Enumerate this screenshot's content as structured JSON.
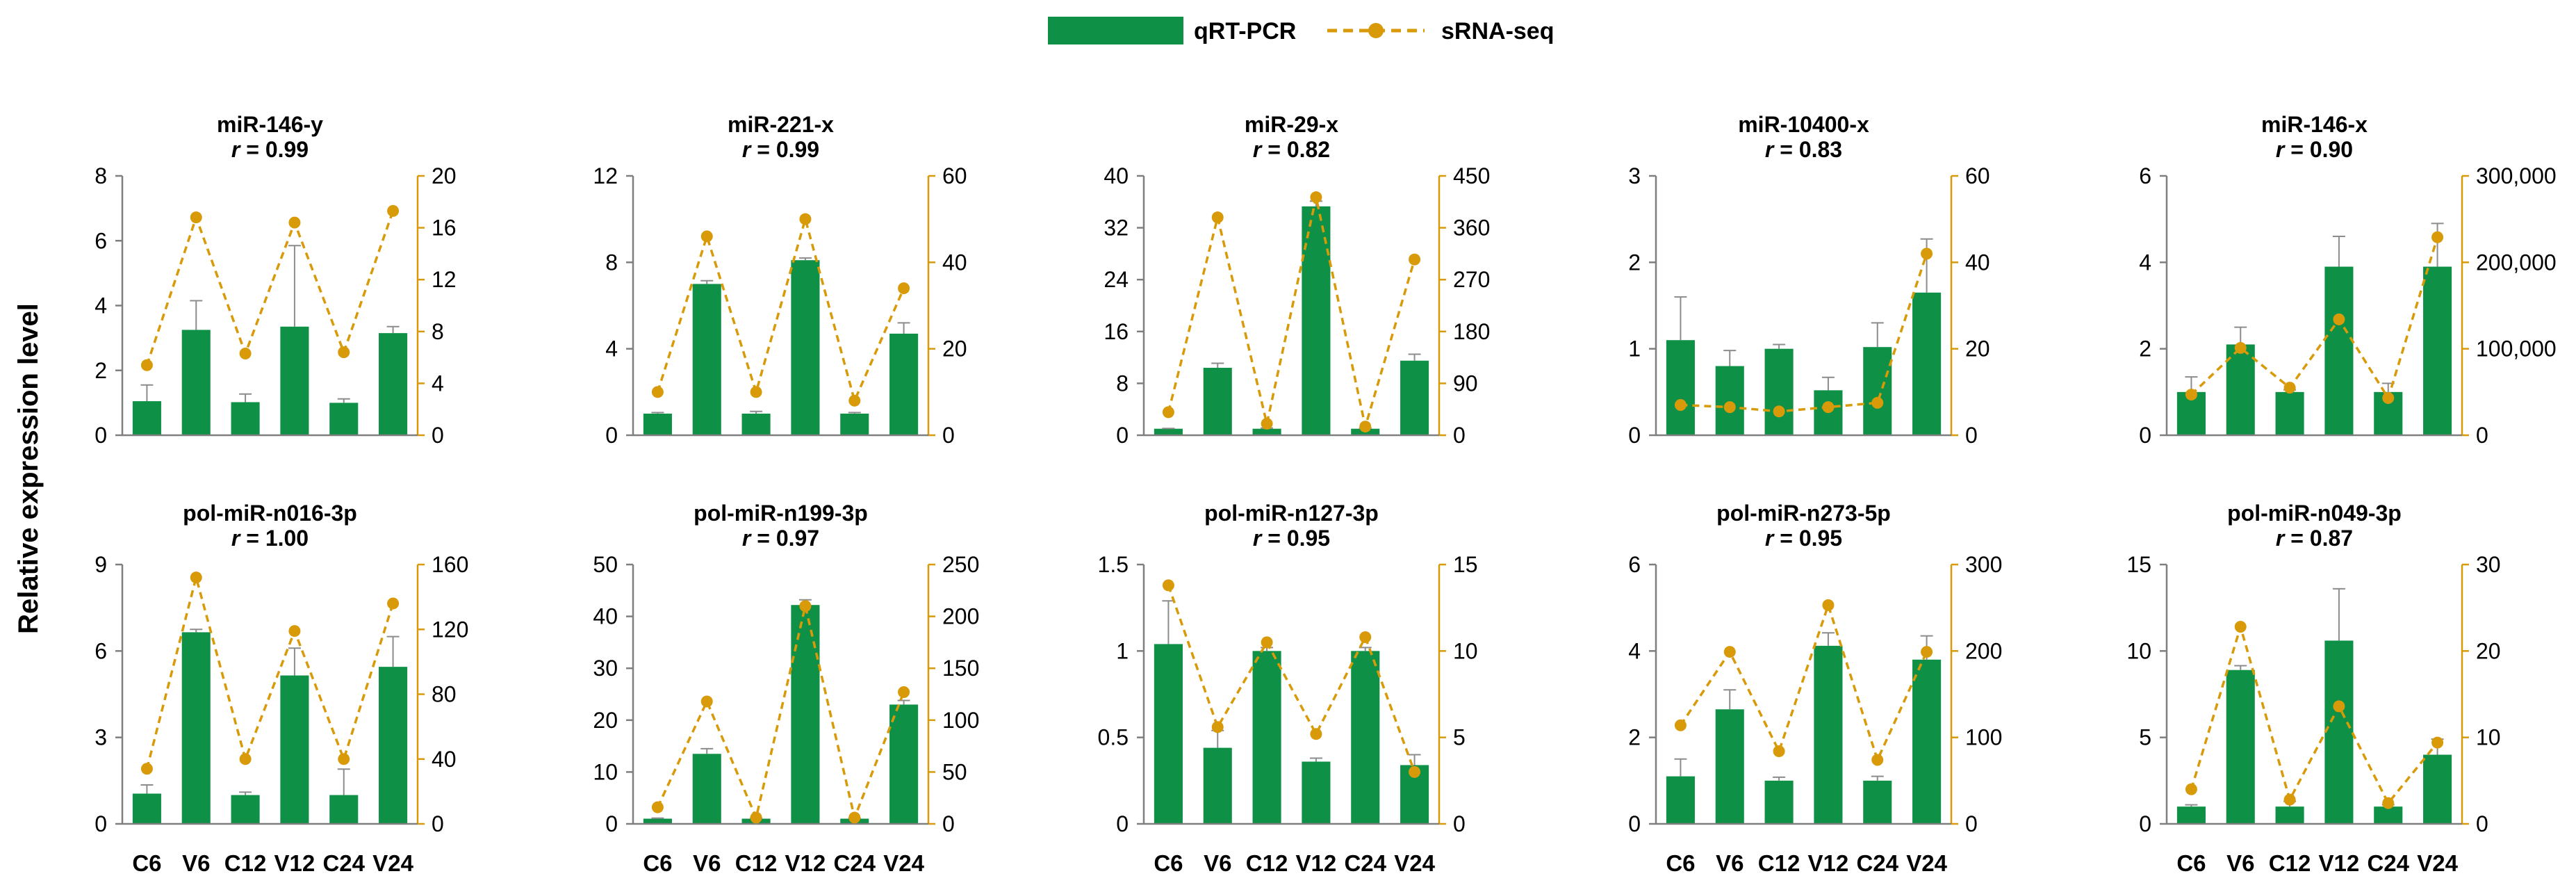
{
  "legend": {
    "bar_label": "qRT-PCR",
    "line_label": "sRNA-seq",
    "bar_color": "#0e9146",
    "line_color": "#d89a08"
  },
  "ylabel": "Relative expression level",
  "chart_data": [
    {
      "type": "bar+line",
      "title": "miR-146-y",
      "r_label": "r",
      "r_value": "= 0.99",
      "categories": [
        "C6",
        "V6",
        "C12",
        "V12",
        "C24",
        "V24"
      ],
      "left_ticks": [
        "0",
        "2",
        "4",
        "6",
        "8"
      ],
      "right_ticks": [
        "0",
        "4",
        "8",
        "12",
        "16",
        "20"
      ],
      "ylim_left": [
        0,
        8
      ],
      "ylim_right": [
        0,
        20
      ],
      "series": [
        {
          "name": "qRT-PCR",
          "type": "bar",
          "axis": "left",
          "values": [
            1.05,
            3.25,
            1.02,
            3.35,
            1.0,
            3.15
          ],
          "error": [
            0.5,
            0.9,
            0.25,
            2.5,
            0.12,
            0.2
          ]
        },
        {
          "name": "sRNA-seq",
          "type": "line",
          "axis": "right",
          "values": [
            5.4,
            16.8,
            6.3,
            16.4,
            6.4,
            17.3
          ]
        }
      ]
    },
    {
      "type": "bar+line",
      "title": "miR-221-x",
      "r_label": "r",
      "r_value": "= 0.99",
      "categories": [
        "C6",
        "V6",
        "C12",
        "V12",
        "C24",
        "V24"
      ],
      "left_ticks": [
        "0",
        "4",
        "8",
        "12"
      ],
      "right_ticks": [
        "0",
        "20",
        "40",
        "60"
      ],
      "ylim_left": [
        0,
        12
      ],
      "ylim_right": [
        0,
        60
      ],
      "series": [
        {
          "name": "qRT-PCR",
          "type": "bar",
          "axis": "left",
          "values": [
            1.0,
            7.0,
            1.0,
            8.1,
            1.0,
            4.7
          ],
          "error": [
            0.05,
            0.15,
            0.1,
            0.1,
            0.05,
            0.5
          ]
        },
        {
          "name": "sRNA-seq",
          "type": "line",
          "axis": "right",
          "values": [
            10,
            46,
            10,
            50,
            8,
            34
          ]
        }
      ]
    },
    {
      "type": "bar+line",
      "title": "miR-29-x",
      "r_label": "r",
      "r_value": "= 0.82",
      "categories": [
        "C6",
        "V6",
        "C12",
        "V12",
        "C24",
        "V24"
      ],
      "left_ticks": [
        "0",
        "8",
        "16",
        "24",
        "32",
        "40"
      ],
      "right_ticks": [
        "0",
        "90",
        "180",
        "270",
        "360",
        "450"
      ],
      "ylim_left": [
        0,
        40
      ],
      "ylim_right": [
        0,
        450
      ],
      "series": [
        {
          "name": "qRT-PCR",
          "type": "bar",
          "axis": "left",
          "values": [
            1.0,
            10.4,
            1.0,
            35.3,
            1.0,
            11.5
          ],
          "error": [
            0.05,
            0.7,
            0.1,
            0.8,
            0.1,
            1.0
          ]
        },
        {
          "name": "sRNA-seq",
          "type": "line",
          "axis": "right",
          "values": [
            40,
            378,
            20,
            413,
            15,
            305
          ]
        }
      ]
    },
    {
      "type": "bar+line",
      "title": "miR-10400-x",
      "r_label": "r",
      "r_value": "= 0.83",
      "categories": [
        "C6",
        "V6",
        "C12",
        "V12",
        "C24",
        "V24"
      ],
      "left_ticks": [
        "0",
        "1",
        "2",
        "3"
      ],
      "right_ticks": [
        "0",
        "20",
        "40",
        "60"
      ],
      "ylim_left": [
        0,
        3
      ],
      "ylim_right": [
        0,
        60
      ],
      "series": [
        {
          "name": "qRT-PCR",
          "type": "bar",
          "axis": "left",
          "values": [
            1.1,
            0.8,
            1.0,
            0.52,
            1.02,
            1.65
          ],
          "error": [
            0.5,
            0.18,
            0.05,
            0.15,
            0.28,
            0.62
          ]
        },
        {
          "name": "sRNA-seq",
          "type": "line",
          "axis": "right",
          "values": [
            7,
            6.5,
            5.5,
            6.5,
            7.5,
            42
          ]
        }
      ]
    },
    {
      "type": "bar+line",
      "title": "miR-146-x",
      "r_label": "r",
      "r_value": "= 0.90",
      "categories": [
        "C6",
        "V6",
        "C12",
        "V12",
        "C24",
        "V24"
      ],
      "left_ticks": [
        "0",
        "2",
        "4",
        "6"
      ],
      "right_ticks": [
        "0",
        "100,000",
        "200,000",
        "300,000"
      ],
      "ylim_left": [
        0,
        6
      ],
      "ylim_right": [
        0,
        300000
      ],
      "series": [
        {
          "name": "qRT-PCR",
          "type": "bar",
          "axis": "left",
          "values": [
            1.0,
            2.1,
            1.0,
            3.9,
            1.0,
            3.9
          ],
          "error": [
            0.35,
            0.4,
            0.05,
            0.7,
            0.2,
            1.0
          ]
        },
        {
          "name": "sRNA-seq",
          "type": "line",
          "axis": "right",
          "values": [
            47000,
            101000,
            55000,
            134000,
            43000,
            229000
          ]
        }
      ]
    },
    {
      "type": "bar+line",
      "title": "pol-miR-n016-3p",
      "r_label": "r",
      "r_value": "= 1.00",
      "categories": [
        "C6",
        "V6",
        "C12",
        "V12",
        "C24",
        "V24"
      ],
      "left_ticks": [
        "0",
        "3",
        "6",
        "9"
      ],
      "right_ticks": [
        "0",
        "40",
        "80",
        "120",
        "160"
      ],
      "ylim_left": [
        0,
        9
      ],
      "ylim_right": [
        0,
        160
      ],
      "series": [
        {
          "name": "qRT-PCR",
          "type": "bar",
          "axis": "left",
          "values": [
            1.05,
            6.65,
            1.0,
            5.15,
            1.0,
            5.45
          ],
          "error": [
            0.3,
            0.1,
            0.1,
            0.95,
            0.9,
            1.05
          ]
        },
        {
          "name": "sRNA-seq",
          "type": "line",
          "axis": "right",
          "values": [
            34,
            152,
            40,
            119,
            40,
            136
          ]
        }
      ]
    },
    {
      "type": "bar+line",
      "title": "pol-miR-n199-3p",
      "r_label": "r",
      "r_value": "= 0.97",
      "categories": [
        "C6",
        "V6",
        "C12",
        "V12",
        "C24",
        "V24"
      ],
      "left_ticks": [
        "0",
        "10",
        "20",
        "30",
        "40",
        "50"
      ],
      "right_ticks": [
        "0",
        "50",
        "100",
        "150",
        "200",
        "250"
      ],
      "ylim_left": [
        0,
        50
      ],
      "ylim_right": [
        0,
        250
      ],
      "series": [
        {
          "name": "qRT-PCR",
          "type": "bar",
          "axis": "left",
          "values": [
            1.0,
            13.5,
            1.0,
            42.2,
            1.0,
            23.0
          ],
          "error": [
            0.1,
            1.0,
            0.1,
            1.0,
            0.1,
            0.8
          ]
        },
        {
          "name": "sRNA-seq",
          "type": "line",
          "axis": "right",
          "values": [
            16,
            118,
            6,
            210,
            6,
            127
          ]
        }
      ]
    },
    {
      "type": "bar+line",
      "title": "pol-miR-n127-3p",
      "r_label": "r",
      "r_value": "= 0.95",
      "categories": [
        "C6",
        "V6",
        "C12",
        "V12",
        "C24",
        "V24"
      ],
      "left_ticks": [
        "0",
        "0.5",
        "1",
        "1.5"
      ],
      "right_ticks": [
        "0",
        "5",
        "10",
        "15"
      ],
      "ylim_left": [
        0,
        1.5
      ],
      "ylim_right": [
        0,
        15
      ],
      "series": [
        {
          "name": "qRT-PCR",
          "type": "bar",
          "axis": "left",
          "values": [
            1.04,
            0.44,
            1.0,
            0.36,
            1.0,
            0.34
          ],
          "error": [
            0.25,
            0.1,
            0.02,
            0.02,
            0.02,
            0.06
          ]
        },
        {
          "name": "sRNA-seq",
          "type": "line",
          "axis": "right",
          "values": [
            13.8,
            5.6,
            10.5,
            5.2,
            10.8,
            3.0
          ]
        }
      ]
    },
    {
      "type": "bar+line",
      "title": "pol-miR-n273-5p",
      "r_label": "r",
      "r_value": "= 0.95",
      "categories": [
        "C6",
        "V6",
        "C12",
        "V12",
        "C24",
        "V24"
      ],
      "left_ticks": [
        "0",
        "2",
        "4",
        "6"
      ],
      "right_ticks": [
        "0",
        "100",
        "200",
        "300"
      ],
      "ylim_left": [
        0,
        6
      ],
      "ylim_right": [
        0,
        300
      ],
      "series": [
        {
          "name": "qRT-PCR",
          "type": "bar",
          "axis": "left",
          "values": [
            1.1,
            2.65,
            1.0,
            4.12,
            1.0,
            3.8
          ],
          "error": [
            0.4,
            0.45,
            0.08,
            0.3,
            0.1,
            0.55
          ]
        },
        {
          "name": "sRNA-seq",
          "type": "line",
          "axis": "right",
          "values": [
            114,
            199,
            84,
            253,
            74,
            199
          ]
        }
      ]
    },
    {
      "type": "bar+line",
      "title": "pol-miR-n049-3p",
      "r_label": "r",
      "r_value": "= 0.87",
      "categories": [
        "C6",
        "V6",
        "C12",
        "V12",
        "C24",
        "V24"
      ],
      "left_ticks": [
        "0",
        "5",
        "10",
        "15"
      ],
      "right_ticks": [
        "0",
        "10",
        "20",
        "30"
      ],
      "ylim_left": [
        0,
        15
      ],
      "ylim_right": [
        0,
        30
      ],
      "series": [
        {
          "name": "qRT-PCR",
          "type": "bar",
          "axis": "left",
          "values": [
            1.0,
            8.9,
            1.0,
            10.6,
            1.0,
            4.0
          ],
          "error": [
            0.1,
            0.25,
            0.3,
            3.0,
            0.1,
            0.9
          ]
        },
        {
          "name": "sRNA-seq",
          "type": "line",
          "axis": "right",
          "values": [
            4,
            22.8,
            2.8,
            13.6,
            2.4,
            9.4
          ]
        }
      ]
    }
  ]
}
